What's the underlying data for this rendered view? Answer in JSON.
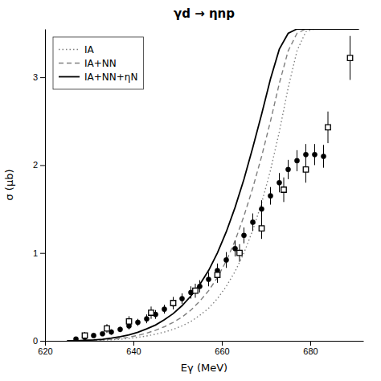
{
  "chart_data": {
    "type": "line",
    "title": "γd → ηnp",
    "x_label": "Eγ (MeV)",
    "y_label": "σ (μb)",
    "xlim": [
      620,
      692
    ],
    "ylim": [
      0,
      3.55
    ],
    "xticks": [
      620,
      640,
      660,
      680
    ],
    "yticks": [
      0,
      1,
      2,
      3
    ],
    "legend": "upper left",
    "series": [
      {
        "name": "IA",
        "type": "line",
        "color": "gray",
        "line_style": "dotted",
        "x": [
          625,
          627,
          629,
          631,
          633,
          635,
          637,
          639,
          641,
          643,
          645,
          647,
          649,
          651,
          653,
          655,
          657,
          659,
          661,
          663,
          665,
          667,
          669,
          671,
          673,
          675,
          677,
          679,
          681,
          683,
          685,
          687,
          689,
          691
        ],
        "values": [
          0.0,
          0.001,
          0.002,
          0.004,
          0.007,
          0.012,
          0.018,
          0.027,
          0.04,
          0.055,
          0.075,
          0.1,
          0.13,
          0.17,
          0.22,
          0.29,
          0.37,
          0.48,
          0.62,
          0.79,
          1.0,
          1.26,
          1.57,
          1.94,
          2.38,
          2.88,
          3.3,
          3.52,
          3.55,
          3.55,
          3.55,
          3.55,
          3.55,
          3.55
        ]
      },
      {
        "name": "IA+NN",
        "type": "line",
        "color": "gray",
        "line_style": "dashed",
        "x": [
          625,
          627,
          629,
          631,
          633,
          635,
          637,
          639,
          641,
          643,
          645,
          647,
          649,
          651,
          653,
          655,
          657,
          659,
          661,
          663,
          665,
          667,
          669,
          671,
          673,
          675,
          677,
          679,
          681,
          683,
          685,
          687,
          689,
          691
        ],
        "values": [
          0.0,
          0.001,
          0.003,
          0.006,
          0.011,
          0.018,
          0.028,
          0.042,
          0.062,
          0.088,
          0.12,
          0.16,
          0.21,
          0.27,
          0.35,
          0.45,
          0.57,
          0.72,
          0.91,
          1.14,
          1.42,
          1.74,
          2.1,
          2.5,
          2.93,
          3.3,
          3.5,
          3.55,
          3.55,
          3.55,
          3.55,
          3.55,
          3.55,
          3.55
        ]
      },
      {
        "name": "IA+NN+ηN",
        "type": "line",
        "color": "black",
        "line_style": "solid",
        "x": [
          625,
          627,
          629,
          631,
          633,
          635,
          637,
          639,
          641,
          643,
          645,
          647,
          649,
          651,
          653,
          655,
          657,
          659,
          661,
          663,
          665,
          667,
          669,
          671,
          673,
          675,
          677,
          679,
          681,
          683,
          685,
          687,
          689,
          691
        ],
        "values": [
          0.0,
          0.002,
          0.005,
          0.01,
          0.018,
          0.03,
          0.046,
          0.068,
          0.098,
          0.136,
          0.18,
          0.24,
          0.31,
          0.4,
          0.51,
          0.64,
          0.8,
          1.0,
          1.24,
          1.52,
          1.84,
          2.2,
          2.58,
          2.98,
          3.32,
          3.5,
          3.55,
          3.55,
          3.55,
          3.55,
          3.55,
          3.55,
          3.55,
          3.55
        ]
      },
      {
        "type": "scatter",
        "color": "black",
        "marker": "circle",
        "x": [
          627,
          629,
          631,
          633,
          635,
          637,
          639,
          641,
          643,
          645,
          647,
          649,
          651,
          653,
          655,
          657,
          659,
          661,
          663,
          665,
          667,
          669,
          671,
          673,
          675,
          677,
          679,
          681,
          683
        ],
        "values": [
          0.02,
          0.04,
          0.06,
          0.08,
          0.1,
          0.13,
          0.17,
          0.21,
          0.25,
          0.3,
          0.36,
          0.42,
          0.48,
          0.55,
          0.62,
          0.7,
          0.8,
          0.92,
          1.05,
          1.2,
          1.35,
          1.5,
          1.65,
          1.8,
          1.95,
          2.05,
          2.12,
          2.12,
          2.1
        ],
        "errors": [
          0.02,
          0.02,
          0.02,
          0.02,
          0.03,
          0.03,
          0.04,
          0.04,
          0.05,
          0.05,
          0.05,
          0.06,
          0.06,
          0.07,
          0.07,
          0.08,
          0.08,
          0.09,
          0.09,
          0.09,
          0.1,
          0.1,
          0.1,
          0.11,
          0.11,
          0.12,
          0.12,
          0.12,
          0.13
        ]
      },
      {
        "type": "scatter",
        "color": "black",
        "marker": "open-square",
        "x": [
          629,
          634,
          639,
          644,
          649,
          654,
          659,
          664,
          669,
          674,
          679,
          684,
          689
        ],
        "values": [
          0.06,
          0.14,
          0.22,
          0.32,
          0.43,
          0.57,
          0.75,
          1.0,
          1.28,
          1.72,
          1.95,
          2.43,
          3.22
        ],
        "errors": [
          0.04,
          0.05,
          0.06,
          0.07,
          0.07,
          0.08,
          0.09,
          0.1,
          0.12,
          0.14,
          0.15,
          0.18,
          0.25
        ]
      }
    ]
  }
}
